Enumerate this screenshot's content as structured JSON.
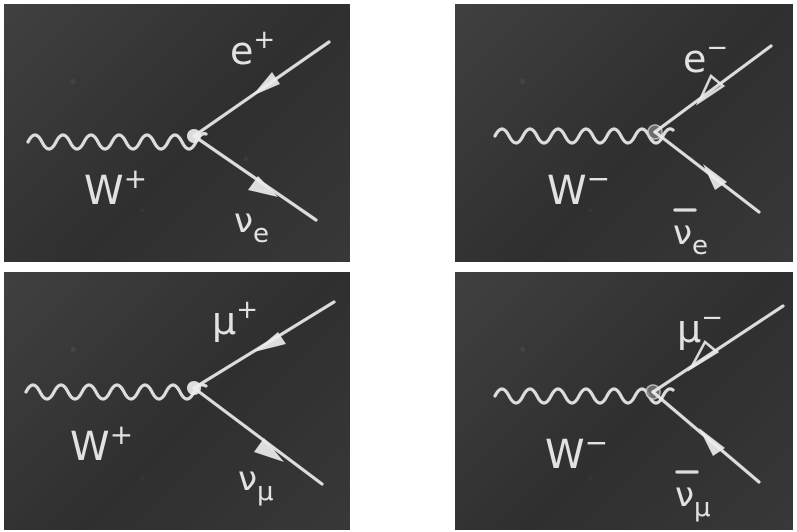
{
  "panels": [
    {
      "boson": "W",
      "boson_charge": "+",
      "upper": {
        "symbol": "e",
        "sup": "+",
        "bar": false
      },
      "lower": {
        "symbol": "ν",
        "sub": "e",
        "bar": false
      }
    },
    {
      "boson": "W",
      "boson_charge": "−",
      "upper": {
        "symbol": "e",
        "sup": "−",
        "bar": false
      },
      "lower": {
        "symbol": "ν",
        "sub": "e",
        "bar": true
      }
    },
    {
      "boson": "W",
      "boson_charge": "+",
      "upper": {
        "symbol": "μ",
        "sup": "+",
        "bar": false
      },
      "lower": {
        "symbol": "ν",
        "sub": "μ",
        "bar": false
      }
    },
    {
      "boson": "W",
      "boson_charge": "−",
      "upper": {
        "symbol": "μ",
        "sup": "−",
        "bar": false
      },
      "lower": {
        "symbol": "ν",
        "sub": "μ",
        "bar": true
      }
    }
  ],
  "colors": {
    "chalkboard": "#3a3a3a",
    "chalk": "#ececec",
    "page": "#ffffff"
  }
}
